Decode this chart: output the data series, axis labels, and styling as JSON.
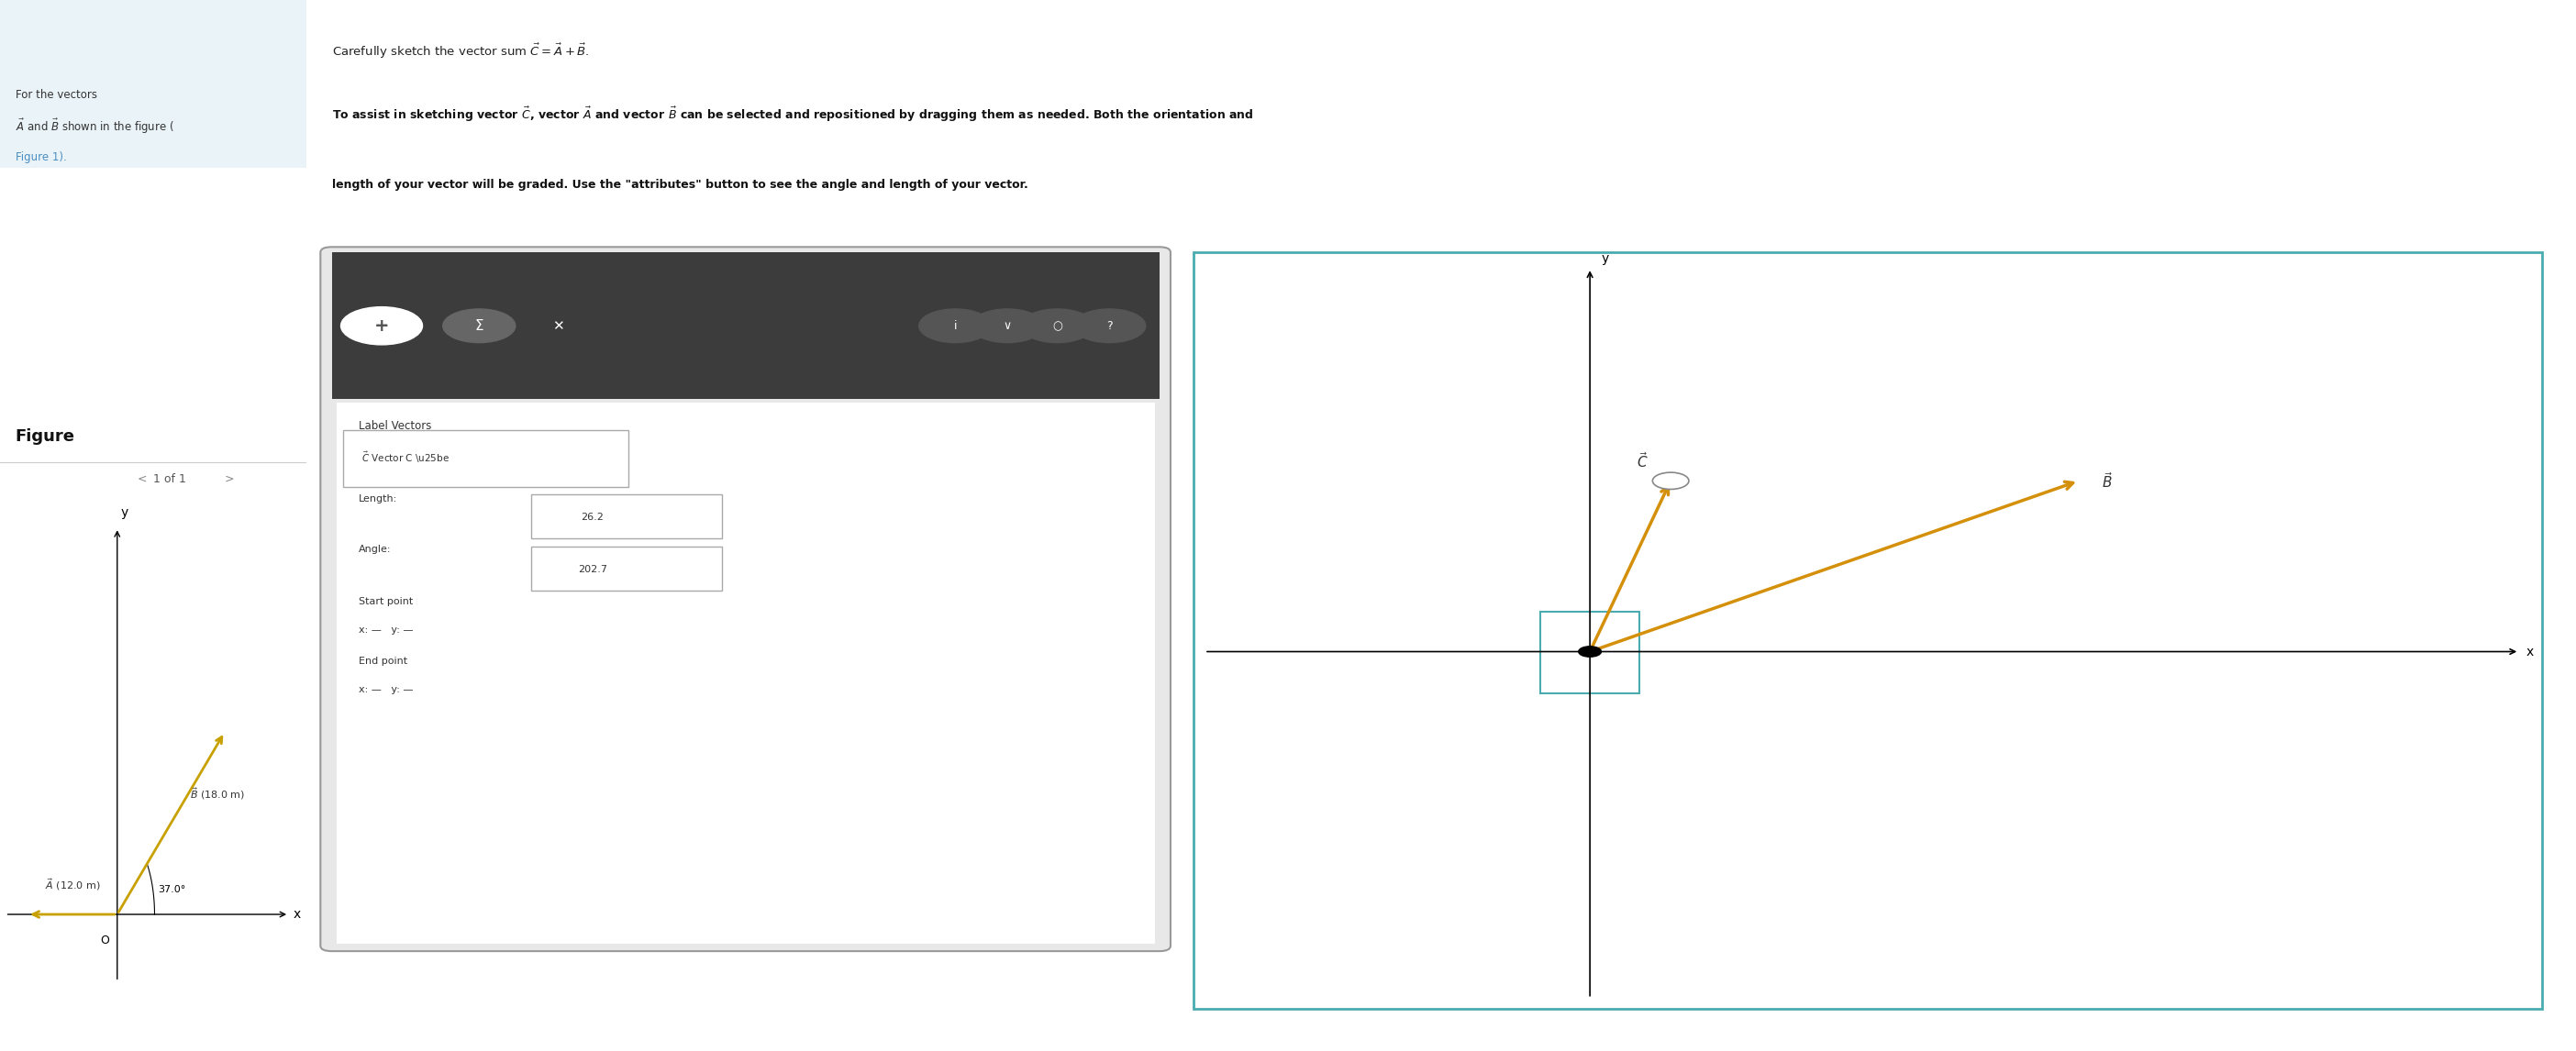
{
  "bg_color": "#ffffff",
  "left_panel_bg": "#eaf3f8",
  "left_panel_text": "For the vectors ⃗A and ⃗B shown in the figure (Figure 1).",
  "figure_label": "Figure",
  "nav_text": "1 of 1",
  "vector_A_label": "⃗A (12.0 m)",
  "vector_B_label": "⃗B (18.0 m)",
  "angle_label": "37.0°",
  "origin_label": "O",
  "x_label": "x",
  "y_label": "y",
  "vec_A_color": "#c8a000",
  "vec_B_color": "#c8a000",
  "vec_C_color": "#c8a000",
  "vec_B_right_color": "#c8a000",
  "right_panel_line1": "Carefully sketch the vector sum ⃗C = ⃗A + ⃗B.",
  "right_panel_line2_bold": "To assist in sketching vector ⃗C, vector ⃗A and vector ⃗B can be selected and repositioned by dragging them as needed. Both the orientation and",
  "right_panel_line3_bold": "length of your vector will be graded. Use the \"attributes\" button to see the angle and length of your vector.",
  "toolbar_bg": "#3a3a3a",
  "widget_bg": "#f0f0f0",
  "widget_border": "#cccccc",
  "label_vectors": "Label Vectors",
  "vec_C_dropdown": "⃗C Vector C ▾",
  "length_label": "Length:",
  "length_value": "26.2",
  "angle_field_label": "Angle:",
  "angle_field_value": "202.7",
  "start_point_label": "Start point",
  "x_dash": "x: —",
  "y_dash_s": "y: —",
  "end_point_label": "End point",
  "x_dash2": "x: —",
  "y_dash_e": "y: —",
  "canvas_bg": "#ffffff",
  "canvas_border": "#4aacb0",
  "axis_color": "#000000",
  "right_vec_C_label": "⃗C",
  "right_vec_B_label": "⃗B"
}
